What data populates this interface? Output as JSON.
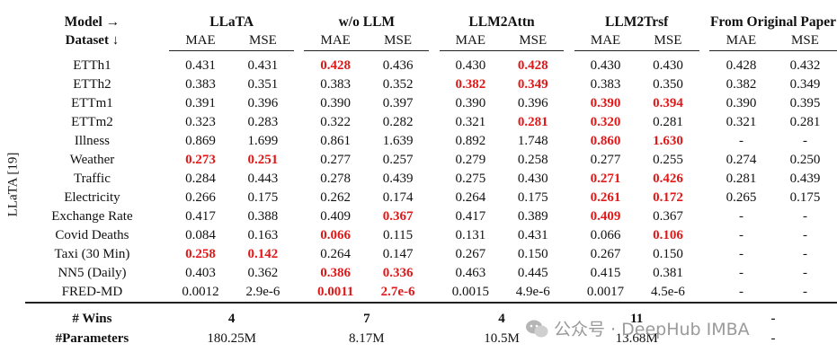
{
  "side_label": "LLaTA [19]",
  "header": {
    "model_label": "Model →",
    "dataset_label": "Dataset ↓",
    "models": [
      "LLaTA",
      "w/o LLM",
      "LLM2Attn",
      "LLM2Trsf",
      "From Original Paper"
    ],
    "metrics": [
      "MAE",
      "MSE"
    ]
  },
  "rows": [
    {
      "dataset": "ETTh1",
      "values": [
        "0.431",
        "0.431",
        "0.428",
        "0.436",
        "0.430",
        "0.428",
        "0.430",
        "0.430",
        "0.428",
        "0.432"
      ],
      "red": [
        2,
        5
      ]
    },
    {
      "dataset": "ETTh2",
      "values": [
        "0.383",
        "0.351",
        "0.383",
        "0.352",
        "0.382",
        "0.349",
        "0.383",
        "0.350",
        "0.382",
        "0.349"
      ],
      "red": [
        4,
        5
      ]
    },
    {
      "dataset": "ETTm1",
      "values": [
        "0.391",
        "0.396",
        "0.390",
        "0.397",
        "0.390",
        "0.396",
        "0.390",
        "0.394",
        "0.390",
        "0.395"
      ],
      "red": [
        6,
        7
      ]
    },
    {
      "dataset": "ETTm2",
      "values": [
        "0.323",
        "0.283",
        "0.322",
        "0.282",
        "0.321",
        "0.281",
        "0.320",
        "0.281",
        "0.321",
        "0.281"
      ],
      "red": [
        5,
        6
      ]
    },
    {
      "dataset": "Illness",
      "values": [
        "0.869",
        "1.699",
        "0.861",
        "1.639",
        "0.892",
        "1.748",
        "0.860",
        "1.630",
        "-",
        "-"
      ],
      "red": [
        6,
        7
      ]
    },
    {
      "dataset": "Weather",
      "values": [
        "0.273",
        "0.251",
        "0.277",
        "0.257",
        "0.279",
        "0.258",
        "0.277",
        "0.255",
        "0.274",
        "0.250"
      ],
      "red": [
        0,
        1
      ]
    },
    {
      "dataset": "Traffic",
      "values": [
        "0.284",
        "0.443",
        "0.278",
        "0.439",
        "0.275",
        "0.430",
        "0.271",
        "0.426",
        "0.281",
        "0.439"
      ],
      "red": [
        6,
        7
      ]
    },
    {
      "dataset": "Electricity",
      "values": [
        "0.266",
        "0.175",
        "0.262",
        "0.174",
        "0.264",
        "0.175",
        "0.261",
        "0.172",
        "0.265",
        "0.175"
      ],
      "red": [
        6,
        7
      ]
    },
    {
      "dataset": "Exchange Rate",
      "values": [
        "0.417",
        "0.388",
        "0.409",
        "0.367",
        "0.417",
        "0.389",
        "0.409",
        "0.367",
        "-",
        "-"
      ],
      "red": [
        3,
        6
      ]
    },
    {
      "dataset": "Covid Deaths",
      "values": [
        "0.084",
        "0.163",
        "0.066",
        "0.115",
        "0.131",
        "0.431",
        "0.066",
        "0.106",
        "-",
        "-"
      ],
      "red": [
        2,
        7
      ]
    },
    {
      "dataset": "Taxi (30 Min)",
      "values": [
        "0.258",
        "0.142",
        "0.264",
        "0.147",
        "0.267",
        "0.150",
        "0.267",
        "0.150",
        "-",
        "-"
      ],
      "red": [
        0,
        1
      ]
    },
    {
      "dataset": "NN5 (Daily)",
      "values": [
        "0.403",
        "0.362",
        "0.386",
        "0.336",
        "0.463",
        "0.445",
        "0.415",
        "0.381",
        "-",
        "-"
      ],
      "red": [
        2,
        3
      ]
    },
    {
      "dataset": "FRED-MD",
      "values": [
        "0.0012",
        "2.9e-6",
        "0.0011",
        "2.7e-6",
        "0.0015",
        "4.9e-6",
        "0.0017",
        "4.5e-6",
        "-",
        "-"
      ],
      "red": [
        2,
        3
      ]
    }
  ],
  "footer": [
    {
      "label": "# Wins",
      "values": [
        "4",
        "7",
        "4",
        "11",
        "-"
      ]
    },
    {
      "label": "#Parameters",
      "values": [
        "180.25M",
        "8.17M",
        "10.5M",
        "13.68M",
        "-"
      ]
    }
  ],
  "watermark": "公众号 · DeepHub IMBA",
  "colors": {
    "highlight": "#e01818",
    "watermark": "#9a9a9a"
  }
}
